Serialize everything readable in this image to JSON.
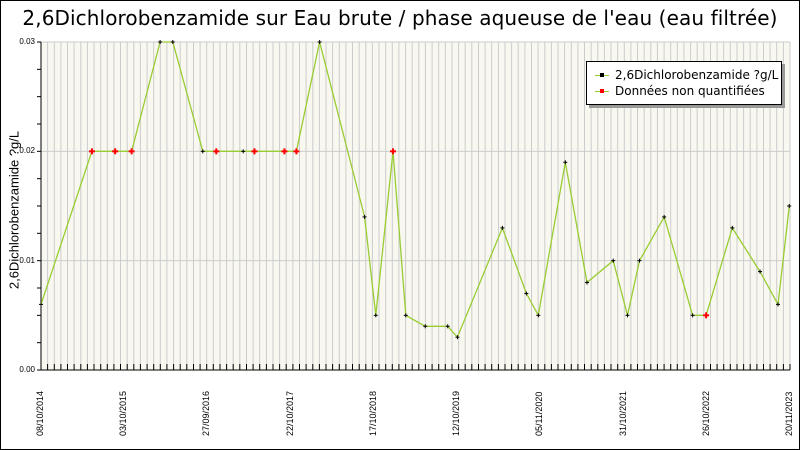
{
  "title": "2,6Dichlorobenzamide sur Eau brute / phase aqueuse de l'eau (eau filtrée)",
  "colors": {
    "line": "#99cc33",
    "point_quantified": "#000000",
    "point_non_quantified": "#ff0000",
    "plot_bg": "#f8f8f0",
    "grid": "#cccccc"
  },
  "legend": {
    "items": [
      {
        "label": "2,6Dichlorobenzamide ?g/L",
        "marker_color": "#000000",
        "line_color": "#99cc33"
      },
      {
        "label": "Données non quantifiées",
        "marker_color": "#ff0000",
        "line_color": "#99cc33"
      }
    ]
  },
  "axes": {
    "ylabel": "2,6Dichlorobenzamide ?g/L",
    "yticks": [
      "0.03",
      "0.02",
      "0.01",
      "0.00"
    ],
    "xticks": [
      "08/10/2014",
      "03/10/2015",
      "27/09/2016",
      "22/10/2017",
      "17/10/2018",
      "12/10/2019",
      "05/11/2020",
      "31/10/2021",
      "26/10/2022",
      "20/11/2023"
    ]
  },
  "chart_data": {
    "type": "line",
    "title": "2,6Dichlorobenzamide sur Eau brute / phase aqueuse de l'eau (eau filtrée)",
    "xlabel": "",
    "ylabel": "2,6Dichlorobenzamide ?g/L",
    "ylim": [
      0,
      0.03
    ],
    "xlim": [
      "08/10/2014",
      "20/11/2023"
    ],
    "grid": {
      "vertical": true,
      "horizontal": true
    },
    "legend_position": "top-right",
    "x_tick_labels": [
      "08/10/2014",
      "03/10/2015",
      "27/09/2016",
      "22/10/2017",
      "17/10/2018",
      "12/10/2019",
      "05/11/2020",
      "31/10/2021",
      "26/10/2022",
      "20/11/2023"
    ],
    "y_tick_labels": [
      "0.00",
      "0.01",
      "0.02",
      "0.03"
    ],
    "series": [
      {
        "name": "2,6Dichlorobenzamide ?g/L",
        "color": "#99cc33",
        "x_frac": [
          0.0,
          0.068,
          0.099,
          0.121,
          0.159,
          0.176,
          0.216,
          0.234,
          0.27,
          0.285,
          0.325,
          0.341,
          0.372,
          0.432,
          0.447,
          0.47,
          0.487,
          0.513,
          0.543,
          0.556,
          0.616,
          0.648,
          0.664,
          0.7,
          0.729,
          0.764,
          0.783,
          0.799,
          0.832,
          0.87,
          0.888,
          0.923,
          0.96,
          0.984,
          0.999
        ],
        "values": [
          0.006,
          0.02,
          0.02,
          0.02,
          0.03,
          0.03,
          0.02,
          0.02,
          0.02,
          0.02,
          0.02,
          0.02,
          0.03,
          0.014,
          0.005,
          0.02,
          0.005,
          0.004,
          0.004,
          0.003,
          0.013,
          0.007,
          0.005,
          0.019,
          0.008,
          0.01,
          0.005,
          0.01,
          0.014,
          0.005,
          0.005,
          0.013,
          0.009,
          0.006,
          0.015
        ],
        "non_quantified": [
          false,
          true,
          true,
          true,
          false,
          false,
          false,
          true,
          false,
          true,
          true,
          true,
          false,
          false,
          false,
          true,
          false,
          false,
          false,
          false,
          false,
          false,
          false,
          false,
          false,
          false,
          false,
          false,
          false,
          false,
          true,
          false,
          false,
          false,
          false
        ]
      }
    ]
  }
}
